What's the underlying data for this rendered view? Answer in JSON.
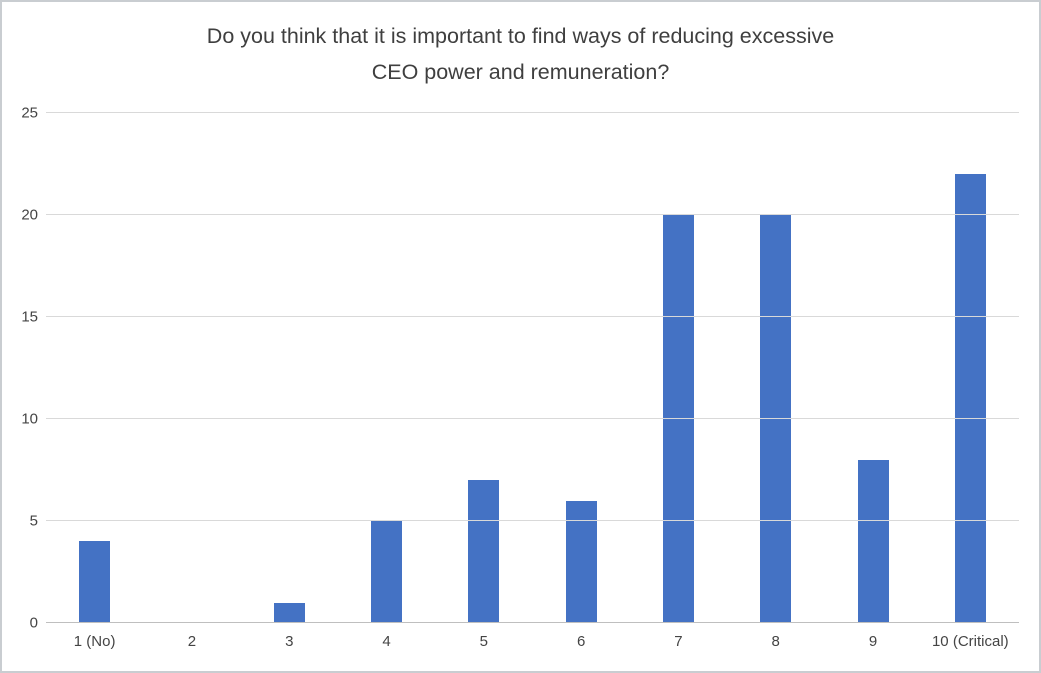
{
  "chart": {
    "title_lines": [
      "Do you think that it is important to find ways of reducing excessive",
      "CEO power and remuneration?"
    ]
  },
  "chart_data": {
    "type": "bar",
    "title": "Do you think that it is important to find ways of reducing excessive CEO power and remuneration?",
    "categories": [
      "1 (No)",
      "2",
      "3",
      "4",
      "5",
      "6",
      "7",
      "8",
      "9",
      "10 (Critical)"
    ],
    "values": [
      4,
      0,
      1,
      5,
      7,
      6,
      20,
      20,
      8,
      22
    ],
    "xlabel": "",
    "ylabel": "",
    "ylim": [
      0,
      25
    ],
    "ytick_step": 5,
    "yticks": [
      0,
      5,
      10,
      15,
      20,
      25
    ],
    "grid": "horizontal",
    "legend": "none",
    "colors": {
      "bar": "#4472C4",
      "gridline": "#d9d9d9",
      "axis_line": "#bfbfbf",
      "title_text": "#3f3f3f",
      "tick_text": "#444444",
      "frame_border": "#c9cdd1",
      "background": "#ffffff"
    }
  }
}
